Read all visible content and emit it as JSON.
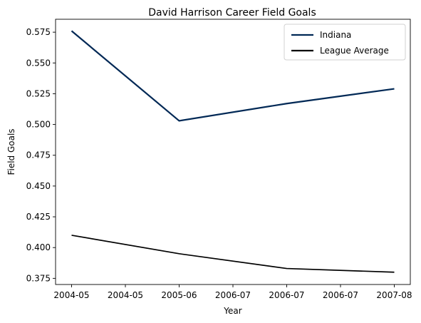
{
  "chart_data": {
    "type": "line",
    "title": "David Harrison  Career Field Goals",
    "xlabel": "Year",
    "ylabel": "Field Goals",
    "x_tick_labels": [
      "2004-05",
      "2004-05",
      "2005-06",
      "2006-07",
      "2006-07",
      "2006-07",
      "2007-08"
    ],
    "x": [
      "2004-05",
      "2005-06",
      "2006-07",
      "2007-08"
    ],
    "y_ticks": [
      "0.375",
      "0.400",
      "0.425",
      "0.450",
      "0.475",
      "0.500",
      "0.525",
      "0.550",
      "0.575"
    ],
    "ylim": [
      0.37,
      0.5855
    ],
    "grid": false,
    "legend_position": "top-right",
    "series": [
      {
        "name": "Indiana",
        "color": "#002855",
        "values": [
          0.576,
          0.503,
          0.517,
          0.529
        ]
      },
      {
        "name": "League Average",
        "color": "#000000",
        "values": [
          0.41,
          0.395,
          0.383,
          0.38
        ]
      }
    ]
  }
}
